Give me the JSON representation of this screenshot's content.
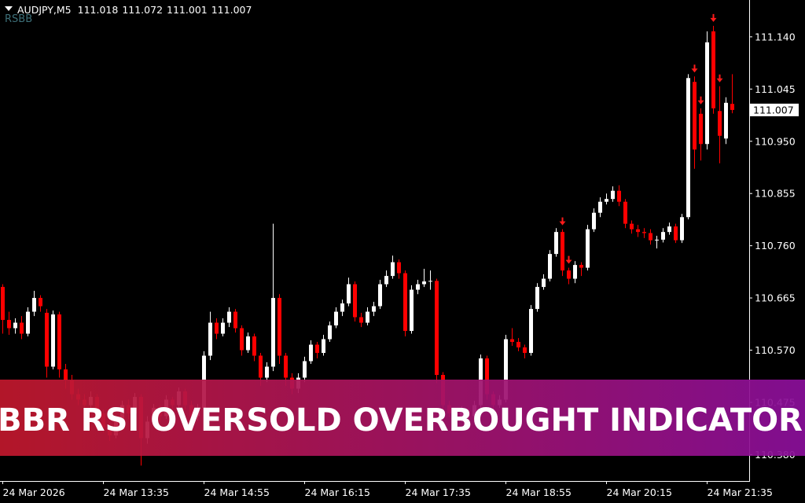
{
  "chart_data": {
    "type": "candlestick",
    "title": "AUDJPY,M5",
    "watermark": "RSBB",
    "banner": "BBR RSI OVERSOLD OVERBOUGHT INDICATOR",
    "up_color": "#ffffff",
    "down_color": "#ff0000",
    "signal_color": "#ff1a1a",
    "background": "#000000",
    "ylim": [
      110.332,
      111.207
    ],
    "yticks": [
      {
        "value": 111.14,
        "label": "111.140"
      },
      {
        "value": 111.045,
        "label": "111.045"
      },
      {
        "value": 110.95,
        "label": "110.950"
      },
      {
        "value": 110.855,
        "label": "110.855"
      },
      {
        "value": 110.76,
        "label": "110.760"
      },
      {
        "value": 110.665,
        "label": "110.665"
      },
      {
        "value": 110.57,
        "label": "110.570"
      },
      {
        "value": 110.475,
        "label": "110.475"
      },
      {
        "value": 110.38,
        "label": "110.380"
      }
    ],
    "categories": [
      "24 Mar 2026",
      null,
      null,
      null,
      null,
      null,
      null,
      null,
      null,
      null,
      null,
      null,
      null,
      null,
      null,
      null,
      "24 Mar 13:35",
      null,
      null,
      null,
      null,
      null,
      null,
      null,
      null,
      null,
      null,
      null,
      null,
      null,
      null,
      null,
      "24 Mar 14:55",
      null,
      null,
      null,
      null,
      null,
      null,
      null,
      null,
      null,
      null,
      null,
      null,
      null,
      null,
      null,
      "24 Mar 16:15",
      null,
      null,
      null,
      null,
      null,
      null,
      null,
      null,
      null,
      null,
      null,
      null,
      null,
      null,
      null,
      "24 Mar 17:35",
      null,
      null,
      null,
      null,
      null,
      null,
      null,
      null,
      null,
      null,
      null,
      null,
      null,
      null,
      null,
      "24 Mar 18:55",
      null,
      null,
      null,
      null,
      null,
      null,
      null,
      null,
      null,
      null,
      null,
      null,
      null,
      null,
      null,
      "24 Mar 20:15",
      null,
      null,
      null,
      null,
      null,
      null,
      null,
      null,
      null,
      null,
      null,
      null,
      null,
      null,
      null,
      "24 Mar 21:35",
      null,
      null,
      null,
      null
    ],
    "candles": [
      [
        110.685,
        110.69,
        110.6,
        110.625
      ],
      [
        110.625,
        110.64,
        110.598,
        110.61
      ],
      [
        110.61,
        110.628,
        110.6,
        110.62
      ],
      [
        110.62,
        110.632,
        110.59,
        110.6
      ],
      [
        110.6,
        110.648,
        110.595,
        110.64
      ],
      [
        110.64,
        110.678,
        110.632,
        110.665
      ],
      [
        110.665,
        110.67,
        110.64,
        110.65
      ],
      [
        110.638,
        110.645,
        110.52,
        110.54
      ],
      [
        110.54,
        110.642,
        110.535,
        110.635
      ],
      [
        110.635,
        110.64,
        110.52,
        110.535
      ],
      [
        110.535,
        110.545,
        110.5,
        110.515
      ],
      [
        110.515,
        110.525,
        110.48,
        110.49
      ],
      [
        110.49,
        110.5,
        110.47,
        110.48
      ],
      [
        110.48,
        110.49,
        110.455,
        110.47
      ],
      [
        110.47,
        110.495,
        110.462,
        110.485
      ],
      [
        110.485,
        110.49,
        110.445,
        110.455
      ],
      [
        110.455,
        110.462,
        110.42,
        110.43
      ],
      [
        110.43,
        110.438,
        110.405,
        110.415
      ],
      [
        110.415,
        110.448,
        110.41,
        110.44
      ],
      [
        110.44,
        110.478,
        110.435,
        110.47
      ],
      [
        110.47,
        110.48,
        110.445,
        110.455
      ],
      [
        110.455,
        110.492,
        110.45,
        110.485
      ],
      [
        110.485,
        110.49,
        110.36,
        110.41
      ],
      [
        110.41,
        110.45,
        110.4,
        110.44
      ],
      [
        110.44,
        110.472,
        110.432,
        110.465
      ],
      [
        110.465,
        110.47,
        110.44,
        110.45
      ],
      [
        110.45,
        110.488,
        110.445,
        110.48
      ],
      [
        110.48,
        110.485,
        110.462,
        110.47
      ],
      [
        110.47,
        110.502,
        110.465,
        110.495
      ],
      [
        110.495,
        110.5,
        110.462,
        110.47
      ],
      [
        110.47,
        110.478,
        110.44,
        110.45
      ],
      [
        110.45,
        110.472,
        110.442,
        110.465
      ],
      [
        110.465,
        110.568,
        110.46,
        110.56
      ],
      [
        110.56,
        110.64,
        110.552,
        110.62
      ],
      [
        110.62,
        110.628,
        110.59,
        110.6
      ],
      [
        110.6,
        110.628,
        110.595,
        110.62
      ],
      [
        110.62,
        110.648,
        110.612,
        110.64
      ],
      [
        110.64,
        110.645,
        110.602,
        110.61
      ],
      [
        110.61,
        110.615,
        110.56,
        110.57
      ],
      [
        110.57,
        110.602,
        110.565,
        110.595
      ],
      [
        110.595,
        110.6,
        110.55,
        110.56
      ],
      [
        110.56,
        110.565,
        110.505,
        110.52
      ],
      [
        110.52,
        110.548,
        110.512,
        110.54
      ],
      [
        110.54,
        110.8,
        110.532,
        110.665
      ],
      [
        110.665,
        110.672,
        110.545,
        110.56
      ],
      [
        110.56,
        110.565,
        110.505,
        110.52
      ],
      [
        110.52,
        110.528,
        110.49,
        110.5
      ],
      [
        110.5,
        110.528,
        110.492,
        110.52
      ],
      [
        110.52,
        110.558,
        110.512,
        110.55
      ],
      [
        110.55,
        110.588,
        110.545,
        110.58
      ],
      [
        110.58,
        110.585,
        110.555,
        110.565
      ],
      [
        110.565,
        110.598,
        110.56,
        110.59
      ],
      [
        110.59,
        110.622,
        110.585,
        110.615
      ],
      [
        110.615,
        110.648,
        110.61,
        110.64
      ],
      [
        110.64,
        110.662,
        110.632,
        110.655
      ],
      [
        110.655,
        110.702,
        110.65,
        110.69
      ],
      [
        110.69,
        110.695,
        110.622,
        110.63
      ],
      [
        110.63,
        110.638,
        110.612,
        110.62
      ],
      [
        110.62,
        110.648,
        110.615,
        110.64
      ],
      [
        110.64,
        110.658,
        110.632,
        110.65
      ],
      [
        110.65,
        110.698,
        110.645,
        110.69
      ],
      [
        110.69,
        110.715,
        110.685,
        110.705
      ],
      [
        110.705,
        110.742,
        110.7,
        110.73
      ],
      [
        110.73,
        110.735,
        110.7,
        110.71
      ],
      [
        110.71,
        110.715,
        110.595,
        110.605
      ],
      [
        110.605,
        110.688,
        110.6,
        110.68
      ],
      [
        110.68,
        110.698,
        110.672,
        110.69
      ],
      [
        110.69,
        110.718,
        110.685,
        110.695
      ],
      [
        110.695,
        110.715,
        110.68,
        110.696
      ],
      [
        110.696,
        110.7,
        110.51,
        110.525
      ],
      [
        110.525,
        110.53,
        110.46,
        110.47
      ],
      [
        110.47,
        110.478,
        110.448,
        110.455
      ],
      [
        110.455,
        110.462,
        110.438,
        110.445
      ],
      [
        110.445,
        110.468,
        110.44,
        110.46
      ],
      [
        110.46,
        110.465,
        110.442,
        110.45
      ],
      [
        110.45,
        110.478,
        110.445,
        110.47
      ],
      [
        110.47,
        110.562,
        110.465,
        110.555
      ],
      [
        110.555,
        110.56,
        110.48,
        110.49
      ],
      [
        110.49,
        110.495,
        110.462,
        110.47
      ],
      [
        110.47,
        110.488,
        110.465,
        110.48
      ],
      [
        110.48,
        110.598,
        110.475,
        110.59
      ],
      [
        110.59,
        110.61,
        110.578,
        110.585
      ],
      [
        110.585,
        110.592,
        110.568,
        110.575
      ],
      [
        110.575,
        110.58,
        110.555,
        110.565
      ],
      [
        110.565,
        110.652,
        110.56,
        110.645
      ],
      [
        110.645,
        110.692,
        110.64,
        110.685
      ],
      [
        110.685,
        110.708,
        110.68,
        110.7
      ],
      [
        110.7,
        110.752,
        110.695,
        110.745
      ],
      [
        110.745,
        110.792,
        110.74,
        110.785
      ],
      [
        110.785,
        110.79,
        110.705,
        110.715
      ],
      [
        110.715,
        110.72,
        110.69,
        110.7
      ],
      [
        110.7,
        110.732,
        110.692,
        110.725
      ],
      [
        110.725,
        110.73,
        110.705,
        110.72
      ],
      [
        110.72,
        110.798,
        110.715,
        110.79
      ],
      [
        110.79,
        110.828,
        110.785,
        110.82
      ],
      [
        110.82,
        110.848,
        110.812,
        110.84
      ],
      [
        110.84,
        110.855,
        110.835,
        110.845
      ],
      [
        110.845,
        110.868,
        110.84,
        110.86
      ],
      [
        110.86,
        110.87,
        110.832,
        110.84
      ],
      [
        110.84,
        110.845,
        110.792,
        110.8
      ],
      [
        110.8,
        110.806,
        110.782,
        110.79
      ],
      [
        110.79,
        110.798,
        110.776,
        110.785
      ],
      [
        110.785,
        110.792,
        110.774,
        110.783
      ],
      [
        110.783,
        110.79,
        110.762,
        110.77
      ],
      [
        110.77,
        110.778,
        110.755,
        110.771
      ],
      [
        110.771,
        110.792,
        110.766,
        110.785
      ],
      [
        110.785,
        110.802,
        110.78,
        110.795
      ],
      [
        110.795,
        110.8,
        110.765,
        110.77
      ],
      [
        110.77,
        110.818,
        110.765,
        110.812
      ],
      [
        110.812,
        111.072,
        110.808,
        111.065
      ],
      [
        111.058,
        111.068,
        110.9,
        110.935
      ],
      [
        111,
        111.01,
        110.915,
        110.945
      ],
      [
        110.945,
        111.15,
        110.935,
        111.13
      ],
      [
        111.15,
        111.16,
        111,
        111.01
      ],
      [
        111.005,
        111.05,
        110.91,
        110.96
      ],
      [
        110.955,
        111.03,
        110.945,
        111.02
      ],
      [
        111.018,
        111.072,
        111.001,
        111.007
      ]
    ],
    "sell_signals": [
      89,
      90,
      110,
      111,
      113,
      114
    ]
  }
}
